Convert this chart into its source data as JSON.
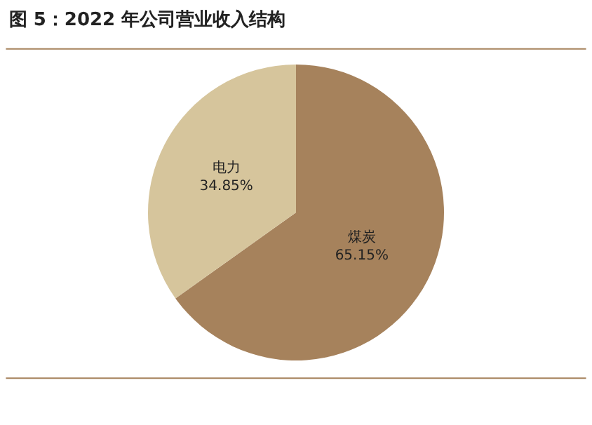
{
  "chart_data": {
    "type": "pie",
    "title": "图 5：2022 年公司营业收入结构",
    "categories": [
      "煤炭",
      "电力"
    ],
    "values": [
      65.15,
      34.85
    ],
    "value_labels": [
      "65.15%",
      "34.85%"
    ],
    "colors": [
      "#a6825c",
      "#d6c59c"
    ],
    "legend": false
  }
}
